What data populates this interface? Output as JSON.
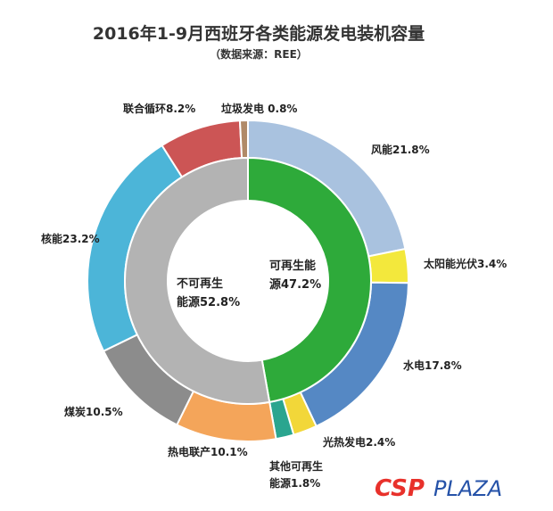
{
  "chart_data": {
    "type": "pie",
    "title": "2016年1-9月西班牙各类能源发电装机容量",
    "subtitle": "（数据来源：REE）",
    "outer_ring": [
      {
        "label": "风能21.8%",
        "value": 21.8,
        "color": "#a9c2df"
      },
      {
        "label": "太阳能光伏3.4%",
        "value": 3.4,
        "color": "#f3e83c"
      },
      {
        "label": "水电17.8%",
        "value": 17.8,
        "color": "#5588c4"
      },
      {
        "label": "光热发电2.4%",
        "value": 2.4,
        "color": "#f2d739"
      },
      {
        "label": "其他可再生",
        "label2": "能源1.8%",
        "value": 1.8,
        "color": "#2aa58f"
      },
      {
        "label": "热电联产10.1%",
        "value": 10.1,
        "color": "#f4a55a"
      },
      {
        "label": "煤炭10.5%",
        "value": 10.5,
        "color": "#8c8c8c"
      },
      {
        "label": "核能23.2%",
        "value": 23.2,
        "color": "#4cb5d8"
      },
      {
        "label": "联合循环8.2%",
        "value": 8.2,
        "color": "#cc5555"
      },
      {
        "label": "垃圾发电 0.8%",
        "value": 0.8,
        "color": "#b08a68"
      }
    ],
    "inner_ring": [
      {
        "line1": "可再生能",
        "line2": "源47.2%",
        "value": 47.2,
        "color": "#2eaa3a"
      },
      {
        "line1": "不可再生",
        "line2": "能源52.8%",
        "value": 52.8,
        "color": "#b3b3b3"
      }
    ]
  },
  "watermark": {
    "part1": "CSP",
    "part2": "PLAZA"
  }
}
